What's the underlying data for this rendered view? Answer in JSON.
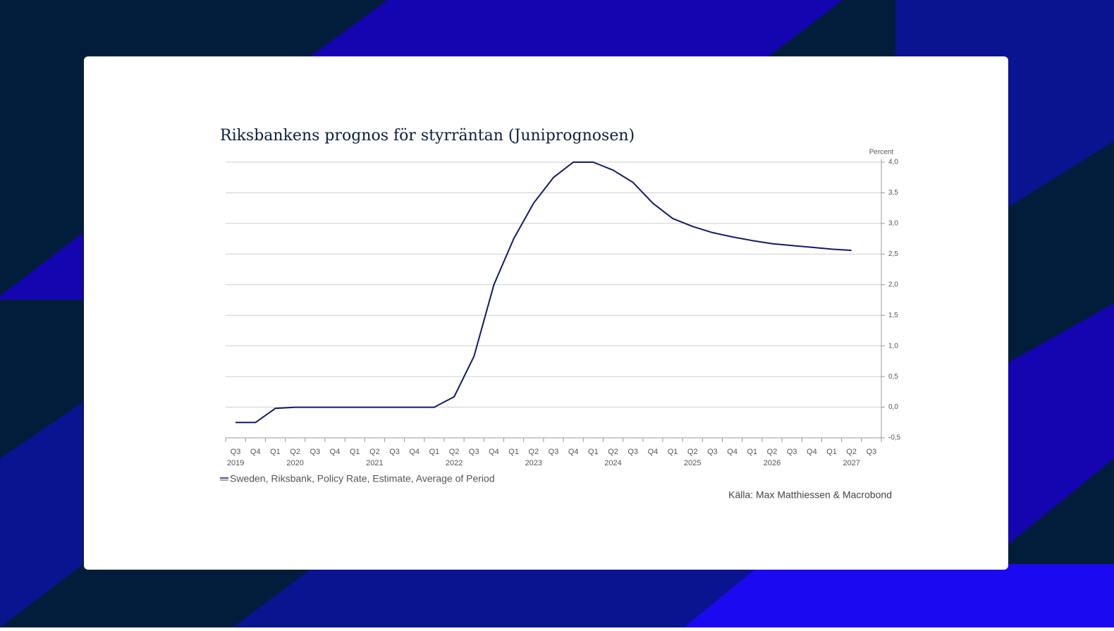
{
  "chart_data": {
    "type": "line",
    "title": "Riksbankens prognos för styrräntan (Juniprognosen)",
    "y_axis_label": "Percent",
    "source": "Källa: Max Matthiessen & Macrobond",
    "categories": [
      "Q3",
      "Q4",
      "Q1",
      "Q2",
      "Q3",
      "Q4",
      "Q1",
      "Q2",
      "Q3",
      "Q4",
      "Q1",
      "Q2",
      "Q3",
      "Q4",
      "Q1",
      "Q2",
      "Q3",
      "Q4",
      "Q1",
      "Q2",
      "Q3",
      "Q4",
      "Q1",
      "Q2",
      "Q3",
      "Q4",
      "Q1",
      "Q2",
      "Q3",
      "Q4",
      "Q1",
      "Q2",
      "Q3"
    ],
    "years": [
      "2019",
      null,
      null,
      "2020",
      null,
      null,
      null,
      "2021",
      null,
      null,
      null,
      "2022",
      null,
      null,
      null,
      "2023",
      null,
      null,
      null,
      "2024",
      null,
      null,
      null,
      "2025",
      null,
      null,
      null,
      "2026",
      null,
      null,
      null,
      "2027",
      null
    ],
    "series": [
      {
        "name": "Sweden, Riksbank, Policy Rate, Estimate, Average of Period",
        "color": "#0f1b6b",
        "values": [
          -0.25,
          -0.25,
          -0.02,
          0,
          0,
          0,
          0,
          0,
          0,
          0,
          0,
          0.17,
          0.83,
          2.0,
          2.75,
          3.33,
          3.75,
          4.0,
          4.0,
          3.87,
          3.67,
          3.33,
          3.08,
          2.95,
          2.85,
          2.78,
          2.72,
          2.67,
          2.64,
          2.61,
          2.58,
          2.56,
          null
        ]
      }
    ],
    "ylim": [
      -0.5,
      4.0
    ],
    "yticks": [
      {
        "value": -0.5,
        "label": "-0,5"
      },
      {
        "value": 0,
        "label": "0,0"
      },
      {
        "value": 0.5,
        "label": "0,5"
      },
      {
        "value": 1.0,
        "label": "1,0"
      },
      {
        "value": 1.5,
        "label": "1,5"
      },
      {
        "value": 2.0,
        "label": "2,0"
      },
      {
        "value": 2.5,
        "label": "2,5"
      },
      {
        "value": 3.0,
        "label": "3,0"
      },
      {
        "value": 3.5,
        "label": "3,5"
      },
      {
        "value": 4.0,
        "label": "4,0"
      }
    ],
    "grid": true,
    "y_axis_side": "right"
  }
}
